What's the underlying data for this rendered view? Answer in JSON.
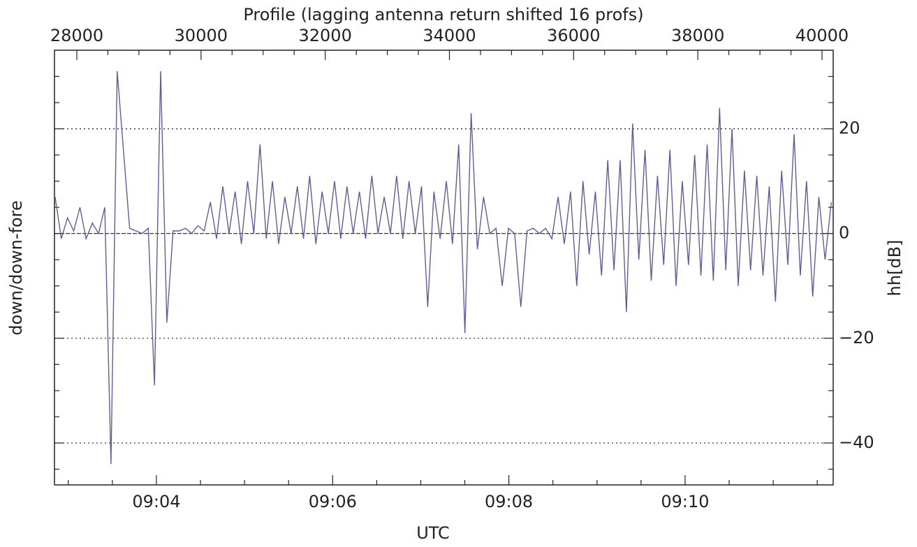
{
  "chart_data": {
    "type": "line",
    "title": "Profile (lagging antenna return shifted 16 profs)",
    "xlabel": "UTC",
    "ylabel": "down/down-fore",
    "y2label": "hh[dB]",
    "xlim": [
      27640,
      40180
    ],
    "xticks": [
      28000,
      30000,
      32000,
      34000,
      36000,
      38000,
      40000
    ],
    "xminorticks": [
      28500,
      29000,
      29500,
      30500,
      31000,
      31500,
      32500,
      33000,
      33500,
      34500,
      35000,
      35500,
      36500,
      37000,
      37500,
      38500,
      39000,
      39500
    ],
    "x2lim": [
      542.843,
      551.681
    ],
    "x2ticks": [
      {
        "value": 544,
        "label": "09:04"
      },
      {
        "value": 546,
        "label": "09:06"
      },
      {
        "value": 548,
        "label": "09:08"
      },
      {
        "value": 550,
        "label": "09:10"
      }
    ],
    "x2minorticks": [
      543,
      543.5,
      544.5,
      545,
      545.5,
      546.5,
      547,
      547.5,
      548.5,
      549,
      549.5,
      550.5,
      551,
      551.5
    ],
    "ylim": [
      -48,
      35
    ],
    "yticks": [
      20,
      0,
      {
        "value": -20,
        "label": "−20"
      },
      {
        "value": -40,
        "label": "−40"
      }
    ],
    "yminorticks": [
      30,
      25,
      15,
      10,
      5,
      -5,
      -10,
      -15,
      -25,
      -30,
      -35,
      -45
    ],
    "grid": true,
    "x": [
      27650,
      27750,
      27850,
      27950,
      28050,
      28150,
      28250,
      28350,
      28450,
      28550,
      28650,
      28750,
      28850,
      28950,
      29050,
      29150,
      29250,
      29350,
      29450,
      29550,
      29650,
      29750,
      29850,
      29950,
      30050,
      30150,
      30250,
      30350,
      30450,
      30550,
      30650,
      30750,
      30850,
      30950,
      31050,
      31150,
      31250,
      31350,
      31450,
      31550,
      31650,
      31750,
      31850,
      31950,
      32050,
      32150,
      32250,
      32350,
      32450,
      32550,
      32650,
      32750,
      32850,
      32950,
      33050,
      33150,
      33250,
      33350,
      33450,
      33550,
      33650,
      33750,
      33850,
      33950,
      34050,
      34150,
      34250,
      34350,
      34450,
      34550,
      34650,
      34750,
      34850,
      34950,
      35050,
      35150,
      35250,
      35350,
      35450,
      35550,
      35650,
      35750,
      35850,
      35950,
      36050,
      36150,
      36250,
      36350,
      36450,
      36550,
      36650,
      36750,
      36850,
      36950,
      37050,
      37150,
      37250,
      37350,
      37450,
      37550,
      37650,
      37750,
      37850,
      37950,
      38050,
      38150,
      38250,
      38350,
      38450,
      38550,
      38650,
      38750,
      38850,
      38950,
      39050,
      39150,
      39250,
      39350,
      39450,
      39550,
      39650,
      39750,
      39850,
      39950,
      40050,
      40150
    ],
    "series": [
      {
        "color": "#5d5f94",
        "values": [
          7,
          -1,
          3,
          0.5,
          5,
          -1,
          2,
          0,
          5,
          -44,
          31,
          16,
          1,
          0.5,
          0,
          1,
          -29,
          31,
          -17,
          0.5,
          0.5,
          1,
          0,
          1.5,
          0.5,
          6,
          -1,
          9,
          0,
          8,
          -2,
          10,
          0,
          17,
          -1,
          10,
          -2,
          7,
          0,
          9,
          -1,
          11,
          -2,
          8,
          0,
          10,
          -1,
          9,
          0,
          8,
          -1,
          11,
          0,
          7,
          0,
          11,
          -1,
          10,
          0,
          9,
          -14,
          8,
          -1,
          10,
          -2,
          17,
          -19,
          23,
          -3,
          7,
          0,
          1,
          -10,
          1,
          0,
          -14,
          0.5,
          1,
          0,
          1,
          -1,
          7,
          -2,
          8,
          -10,
          10,
          -4,
          8,
          -8,
          14,
          -7,
          14,
          -15,
          21,
          -5,
          16,
          -9,
          11,
          -6,
          16,
          -10,
          10,
          -6,
          15,
          -8,
          17,
          -9,
          24,
          -7,
          20,
          -10,
          12,
          -7,
          11,
          -8,
          9,
          -13,
          12,
          -6,
          19,
          -8,
          10,
          -12,
          7,
          -5,
          6
        ]
      }
    ]
  }
}
